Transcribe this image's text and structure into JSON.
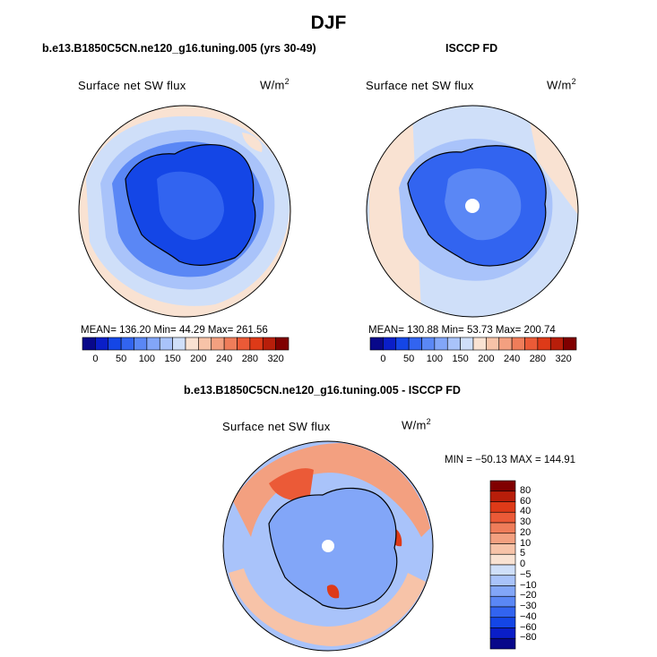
{
  "title": "DJF",
  "panels": [
    {
      "title": "b.e13.B1850C5CN.ne120_g16.tuning.005 (yrs 30-49)",
      "variable": "Surface net SW flux",
      "units": "W/m",
      "units_exp": "2",
      "stats": "MEAN= 136.20   Min=  44.29   Max= 261.56"
    },
    {
      "title": "ISCCP FD",
      "variable": "Surface net SW flux",
      "units": "W/m",
      "units_exp": "2",
      "stats": "MEAN= 130.88   Min=  53.73   Max= 200.74"
    },
    {
      "title": "b.e13.B1850C5CN.ne120_g16.tuning.005 - ISCCP FD",
      "variable": "Surface net SW flux",
      "units": "W/m",
      "units_exp": "2",
      "stats": "MIN = −50.13  MAX = 144.91"
    }
  ],
  "colors": {
    "blue_ramp": [
      "#08088a",
      "#0a1ec8",
      "#1446e6",
      "#3264f0",
      "#5a87f5",
      "#82a6f8",
      "#a9c3fa",
      "#cfdff9"
    ],
    "red_ramp": [
      "#f9e2d2",
      "#f7c3a8",
      "#f3a080",
      "#ef7d5a",
      "#eb5a37",
      "#de3a18",
      "#b81e0a",
      "#800000"
    ],
    "land_outline": "#000000"
  },
  "chart_data": [
    {
      "type": "heatmap",
      "projection": "south polar stereographic",
      "title": "b.e13.B1850C5CN.ne120_g16.tuning.005 (yrs 30-49)",
      "variable": "Surface net SW flux",
      "units": "W/m2",
      "mean": 136.2,
      "min": 44.29,
      "max": 261.56,
      "colorbar_levels": [
        0,
        50,
        100,
        150,
        200,
        240,
        280,
        320
      ]
    },
    {
      "type": "heatmap",
      "projection": "south polar stereographic",
      "title": "ISCCP FD",
      "variable": "Surface net SW flux",
      "units": "W/m2",
      "mean": 130.88,
      "min": 53.73,
      "max": 200.74,
      "colorbar_levels": [
        0,
        50,
        100,
        150,
        200,
        240,
        280,
        320
      ]
    },
    {
      "type": "heatmap",
      "projection": "south polar stereographic",
      "title": "b.e13.B1850C5CN.ne120_g16.tuning.005 - ISCCP FD",
      "variable": "Surface net SW flux",
      "units": "W/m2",
      "min": -50.13,
      "max": 144.91,
      "colorbar_levels": [
        80,
        60,
        40,
        30,
        20,
        10,
        5,
        0,
        -5,
        -10,
        -20,
        -30,
        -40,
        -60,
        -80
      ]
    }
  ]
}
